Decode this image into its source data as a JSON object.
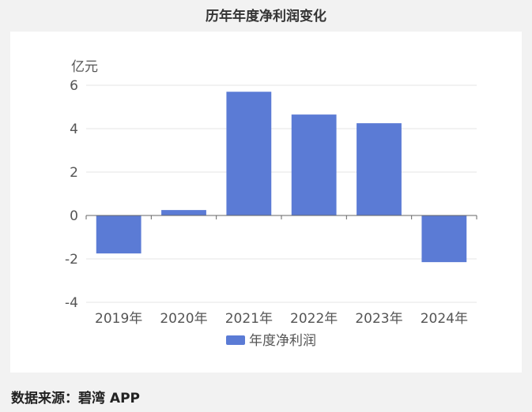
{
  "title": "历年年度净利润变化",
  "source": "数据来源：碧湾 APP",
  "chart_data": {
    "type": "bar",
    "categories": [
      "2019年",
      "2020年",
      "2021年",
      "2022年",
      "2023年",
      "2024年"
    ],
    "series": [
      {
        "name": "年度净利润",
        "values": [
          -1.75,
          0.25,
          5.7,
          4.65,
          4.25,
          -2.15
        ]
      }
    ],
    "y_unit": "亿元",
    "ylim": [
      -4,
      6
    ],
    "yticks": [
      -4,
      -2,
      0,
      2,
      4,
      6
    ],
    "grid": true,
    "legend": "bottom",
    "bar_color": "#5b7bd5"
  }
}
